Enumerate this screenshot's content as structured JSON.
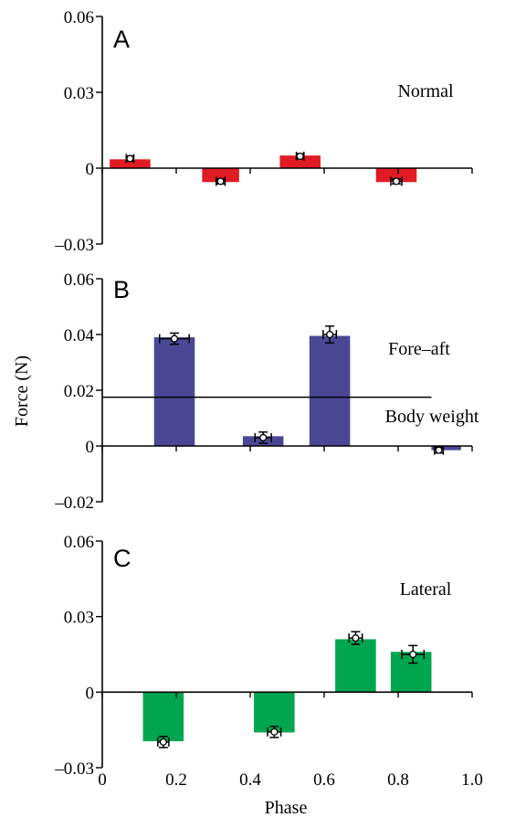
{
  "chart_data": {
    "type": "bar",
    "y_axis_label": "Force (N)",
    "x_axis": {
      "label": "Phase",
      "range": [
        0,
        1.0
      ],
      "tick_labels": [
        "0",
        "0.2",
        "0.4",
        "0.6",
        "0.8",
        "1.0"
      ],
      "tick_values": [
        0,
        0.2,
        0.4,
        0.6,
        0.8,
        1.0
      ]
    },
    "panels": [
      {
        "letter": "A",
        "annotations": [
          {
            "text": "Normal"
          }
        ],
        "ylim": [
          -0.03,
          0.06
        ],
        "y_ticks": [
          -0.03,
          0,
          0.03,
          0.06
        ],
        "y_tick_labels": [
          "–0.03",
          "0",
          "0.03",
          "0.06"
        ],
        "color": "#e01b24",
        "bars": [
          {
            "x0": 0.02,
            "x1": 0.13,
            "value": 0.0035,
            "point": 0.0038,
            "px": 0.075,
            "xerr": 0.01,
            "yerr": 0.001
          },
          {
            "x0": 0.27,
            "x1": 0.37,
            "value": -0.0055,
            "point": -0.0052,
            "px": 0.32,
            "xerr": 0.012,
            "yerr": 0.001
          },
          {
            "x0": 0.48,
            "x1": 0.59,
            "value": 0.005,
            "point": 0.0047,
            "px": 0.535,
            "xerr": 0.01,
            "yerr": 0.001
          },
          {
            "x0": 0.74,
            "x1": 0.85,
            "value": -0.0055,
            "point": -0.0052,
            "px": 0.795,
            "xerr": 0.015,
            "yerr": 0.001
          }
        ]
      },
      {
        "letter": "B",
        "annotations": [
          {
            "text": "Fore–aft"
          },
          {
            "text": "Body weight"
          }
        ],
        "reference_line": {
          "value": 0.0175,
          "x_start": 0,
          "x_end": 0.89
        },
        "ylim": [
          -0.02,
          0.06
        ],
        "y_ticks": [
          -0.02,
          0,
          0.02,
          0.04,
          0.06
        ],
        "y_tick_labels": [
          "–0.02",
          "0",
          "0.02",
          "0.04",
          "0.06"
        ],
        "color": "#4a4795",
        "bars": [
          {
            "x0": 0.14,
            "x1": 0.25,
            "value": 0.039,
            "point": 0.0385,
            "px": 0.195,
            "xerr": 0.04,
            "yerr": 0.002
          },
          {
            "x0": 0.38,
            "x1": 0.49,
            "value": 0.0035,
            "point": 0.003,
            "px": 0.435,
            "xerr": 0.022,
            "yerr": 0.002
          },
          {
            "x0": 0.56,
            "x1": 0.67,
            "value": 0.0395,
            "point": 0.04,
            "px": 0.615,
            "xerr": 0.018,
            "yerr": 0.003
          },
          {
            "x0": 0.89,
            "x1": 0.97,
            "value": -0.0015,
            "point": -0.0015,
            "px": 0.91,
            "xerr": 0.012,
            "yerr": 0.001
          }
        ]
      },
      {
        "letter": "C",
        "annotations": [
          {
            "text": "Lateral"
          }
        ],
        "ylim": [
          -0.03,
          0.06
        ],
        "y_ticks": [
          -0.03,
          0,
          0.03,
          0.06
        ],
        "y_tick_labels": [
          "–0.03",
          "0",
          "0.03",
          "0.06"
        ],
        "color": "#00a64f",
        "bars": [
          {
            "x0": 0.11,
            "x1": 0.22,
            "value": -0.0195,
            "point": -0.0198,
            "px": 0.165,
            "xerr": 0.015,
            "yerr": 0.0022
          },
          {
            "x0": 0.41,
            "x1": 0.52,
            "value": -0.016,
            "point": -0.0158,
            "px": 0.465,
            "xerr": 0.018,
            "yerr": 0.0022
          },
          {
            "x0": 0.63,
            "x1": 0.74,
            "value": 0.021,
            "point": 0.0215,
            "px": 0.685,
            "xerr": 0.018,
            "yerr": 0.0025
          },
          {
            "x0": 0.78,
            "x1": 0.89,
            "value": 0.016,
            "point": 0.015,
            "px": 0.84,
            "xerr": 0.03,
            "yerr": 0.0035
          }
        ]
      }
    ]
  }
}
